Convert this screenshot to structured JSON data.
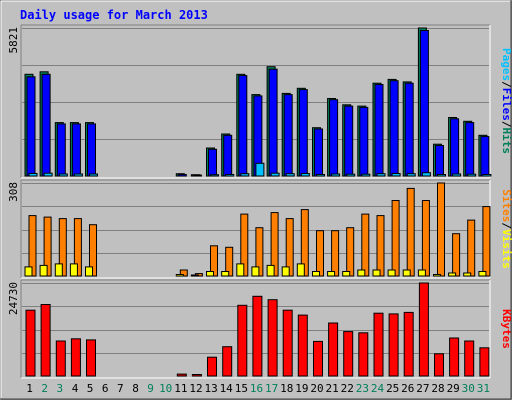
{
  "colors": {
    "background": "#c0c0c0",
    "grid": "#808080",
    "pages": "#00c0ff",
    "files": "#0000ff",
    "hits": "#00805a",
    "sites": "#ff8000",
    "visits": "#ffff00",
    "kbytes": "#ff0000",
    "weekday_label": "#000000",
    "weekend_label": "#00805a"
  },
  "chart_data": {
    "type": "bar",
    "title": "Daily usage for March 2013",
    "categories": [
      "1",
      "2",
      "3",
      "4",
      "5",
      "6",
      "7",
      "8",
      "9",
      "10",
      "11",
      "12",
      "13",
      "14",
      "15",
      "16",
      "17",
      "18",
      "19",
      "20",
      "21",
      "22",
      "23",
      "24",
      "25",
      "26",
      "27",
      "28",
      "29",
      "30",
      "31"
    ],
    "weekend_days": [
      "2",
      "3",
      "9",
      "10",
      "16",
      "17",
      "23",
      "24",
      "30",
      "31"
    ],
    "panels": [
      {
        "id": "hits",
        "ymax_label": "5821",
        "ymax": 5821,
        "legend": [
          {
            "text": "Pages",
            "color": "#00c0ff"
          },
          {
            "text": "Files",
            "color": "#0000ff"
          },
          {
            "text": "Hits",
            "color": "#00805a"
          }
        ],
        "series": [
          {
            "name": "Hits",
            "color": "#00805a",
            "values": [
              4000,
              4100,
              2100,
              2100,
              2100,
              0,
              0,
              0,
              0,
              0,
              90,
              50,
              1100,
              1650,
              4000,
              3200,
              4300,
              3250,
              3450,
              1900,
              3050,
              2800,
              2750,
              3650,
              3800,
              3700,
              5821,
              1250,
              2300,
              2150,
              1600
            ]
          },
          {
            "name": "Files",
            "color": "#0000ff",
            "values": [
              3900,
              4000,
              2050,
              2050,
              2050,
              0,
              0,
              0,
              0,
              0,
              60,
              30,
              1050,
              1600,
              3950,
              3150,
              4200,
              3200,
              3400,
              1850,
              3000,
              2750,
              2700,
              3600,
              3750,
              3650,
              5721,
              1200,
              2250,
              2100,
              1550
            ]
          },
          {
            "name": "Pages",
            "color": "#00c0ff",
            "values": [
              100,
              110,
              80,
              80,
              80,
              0,
              0,
              0,
              0,
              0,
              0,
              0,
              50,
              60,
              90,
              500,
              110,
              90,
              100,
              60,
              80,
              70,
              70,
              90,
              100,
              90,
              130,
              60,
              80,
              70,
              60
            ]
          }
        ]
      },
      {
        "id": "visits",
        "ymax_label": "308",
        "ymax": 308,
        "legend": [
          {
            "text": "Sites",
            "color": "#ff8000"
          },
          {
            "text": "Visits",
            "color": "#ffff00"
          }
        ],
        "series": [
          {
            "name": "Sites",
            "color": "#ff8000",
            "values": [
              200,
              195,
              190,
              190,
              170,
              0,
              0,
              0,
              0,
              0,
              20,
              8,
              100,
              95,
              205,
              160,
              210,
              190,
              220,
              150,
              150,
              160,
              205,
              200,
              250,
              290,
              250,
              308,
              140,
              185,
              230
            ]
          },
          {
            "name": "Visits",
            "color": "#ffff00",
            "values": [
              30,
              35,
              40,
              40,
              30,
              0,
              0,
              0,
              0,
              0,
              5,
              3,
              15,
              15,
              40,
              30,
              35,
              30,
              40,
              15,
              15,
              15,
              20,
              20,
              20,
              20,
              20,
              5,
              10,
              10,
              15
            ]
          }
        ]
      },
      {
        "id": "kbytes",
        "ymax_label": "24730",
        "ymax": 24730,
        "legend": [
          {
            "text": "KBytes",
            "color": "#ff0000"
          }
        ],
        "series": [
          {
            "name": "KBytes",
            "color": "#ff0000",
            "values": [
              17500,
              19000,
              9300,
              9900,
              9600,
              0,
              0,
              0,
              0,
              0,
              500,
              400,
              5000,
              7800,
              18800,
              21200,
              20300,
              17500,
              16200,
              9200,
              14100,
              11800,
              11500,
              16700,
              16500,
              16900,
              24730,
              5900,
              10100,
              9300,
              7500
            ]
          }
        ]
      }
    ]
  }
}
